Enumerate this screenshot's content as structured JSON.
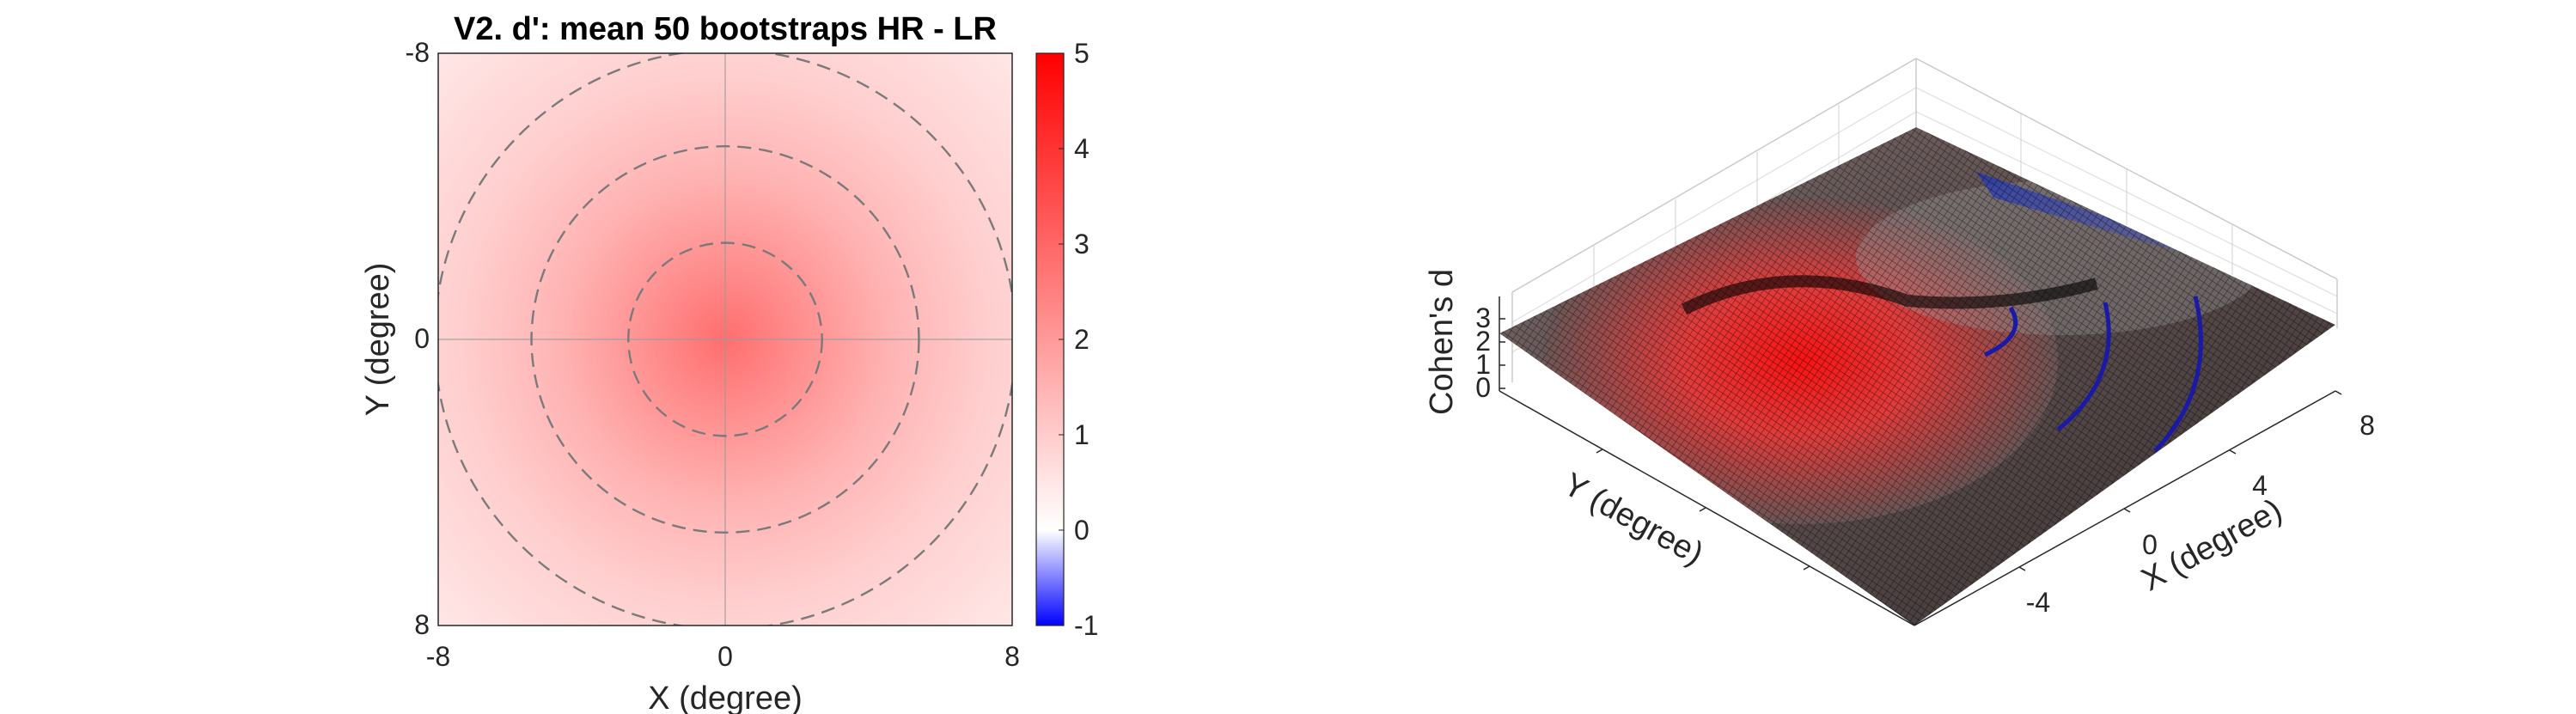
{
  "chart_data": [
    {
      "type": "heatmap",
      "title": "V2. d': mean 50 bootstraps HR - LR",
      "xlabel": "X (degree)",
      "ylabel": "Y (degree)",
      "xlim": [
        -8,
        8
      ],
      "ylim": [
        -8,
        8
      ],
      "y_direction": "reversed",
      "x_ticks": [
        "-8",
        "0",
        "8"
      ],
      "y_ticks": [
        "-8",
        "0",
        "8"
      ],
      "grid": true,
      "colorbar": {
        "range": [
          -1,
          5
        ],
        "ticks": [
          "5",
          "4",
          "3",
          "2",
          "1",
          "0",
          "-1"
        ],
        "low_color": "#0000ff",
        "mid_color": "#ffffff",
        "high_color": "#ff0000"
      },
      "peak_value": 2.4,
      "peak_location": [
        0,
        0
      ],
      "contour_radii_deg": [
        2.7,
        5.4,
        8.1
      ],
      "contour_style": "dashed gray"
    },
    {
      "type": "surface",
      "xlabel": "X (degree)",
      "ylabel": "Y (degree)",
      "zlabel": "Cohen's d",
      "x_ticks": [
        "-4",
        "0",
        "4",
        "8"
      ],
      "z_ticks": [
        "0",
        "1",
        "2",
        "3"
      ],
      "zlim": [
        0,
        3
      ],
      "colormap": "blue-white-red",
      "mesh_color": "#000000",
      "overlay_lines_color": "#1a1aa6"
    }
  ]
}
